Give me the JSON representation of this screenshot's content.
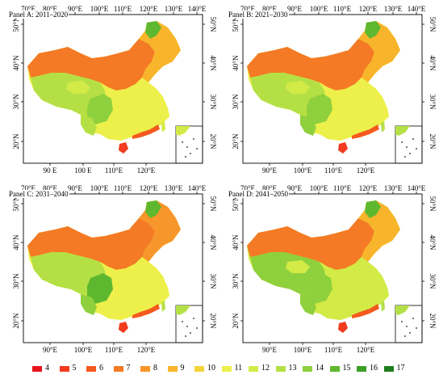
{
  "panels": [
    {
      "id": "A",
      "title": "Panel A: 2011–2020",
      "top_labels": [
        "70°E",
        "80°E",
        "90°E",
        "100°E",
        "110°E",
        "120°E",
        "130°E",
        "140°E"
      ],
      "bottom_labels": [
        "90 E",
        "100 E",
        "110°E",
        "120°E"
      ],
      "left_labels": [
        "50°N",
        "40°N",
        "30°N",
        "20°N"
      ],
      "right_labels": [
        "50°N",
        "40°N",
        "30°N",
        "20°N"
      ]
    },
    {
      "id": "B",
      "title": "Panel B: 2021–2030",
      "top_labels": [
        "70°E",
        "80°E",
        "90°E",
        "100°E",
        "110°E",
        "120°E",
        "130°E",
        "140°E"
      ],
      "bottom_labels": [
        "90°E",
        "100°E",
        "110°E",
        "120°E"
      ],
      "left_labels": [
        "50°N",
        "40°N",
        "30°N",
        "20°N"
      ],
      "right_labels": [
        "50°N",
        "40°N",
        "30°N",
        "20°N"
      ]
    },
    {
      "id": "C",
      "title": "Panel C: 2031–2040",
      "top_labels": [
        "70°E",
        "80°E",
        "90°E",
        "100°E",
        "110°E",
        "120°E",
        "130°E",
        "140°E"
      ],
      "bottom_labels": [
        "90°E",
        "100°E",
        "110°E",
        "120°E"
      ],
      "left_labels": [
        "50°N",
        "40°N",
        "30°N",
        "20°N"
      ],
      "right_labels": [
        "50°N",
        "40°N",
        "30°N",
        "20°N"
      ]
    },
    {
      "id": "D",
      "title": "Panel D: 2041–2050",
      "top_labels": [
        "70°E",
        "80°E",
        "90°E",
        "100°E",
        "110°E",
        "120°E",
        "130°E",
        "140°E"
      ],
      "bottom_labels": [
        "90°E",
        "100°E",
        "110°E",
        "120°E"
      ],
      "left_labels": [
        "50°N",
        "40°N",
        "30°N",
        "20°N"
      ],
      "right_labels": [
        "50°N",
        "40°N",
        "30°N",
        "20°N"
      ]
    }
  ],
  "legend": [
    {
      "label": "4",
      "color": "#e8141c"
    },
    {
      "label": "5",
      "color": "#f23b1f"
    },
    {
      "label": "6",
      "color": "#f45a1e"
    },
    {
      "label": "7",
      "color": "#f47a25"
    },
    {
      "label": "8",
      "color": "#f7962a"
    },
    {
      "label": "9",
      "color": "#f8b52b"
    },
    {
      "label": "10",
      "color": "#f3d43a"
    },
    {
      "label": "11",
      "color": "#edf04a"
    },
    {
      "label": "12",
      "color": "#d3eb47"
    },
    {
      "label": "13",
      "color": "#b5e045"
    },
    {
      "label": "14",
      "color": "#8fd03d"
    },
    {
      "label": "15",
      "color": "#5eb82f"
    },
    {
      "label": "16",
      "color": "#3c9f26"
    },
    {
      "label": "17",
      "color": "#1e7d1c"
    }
  ]
}
